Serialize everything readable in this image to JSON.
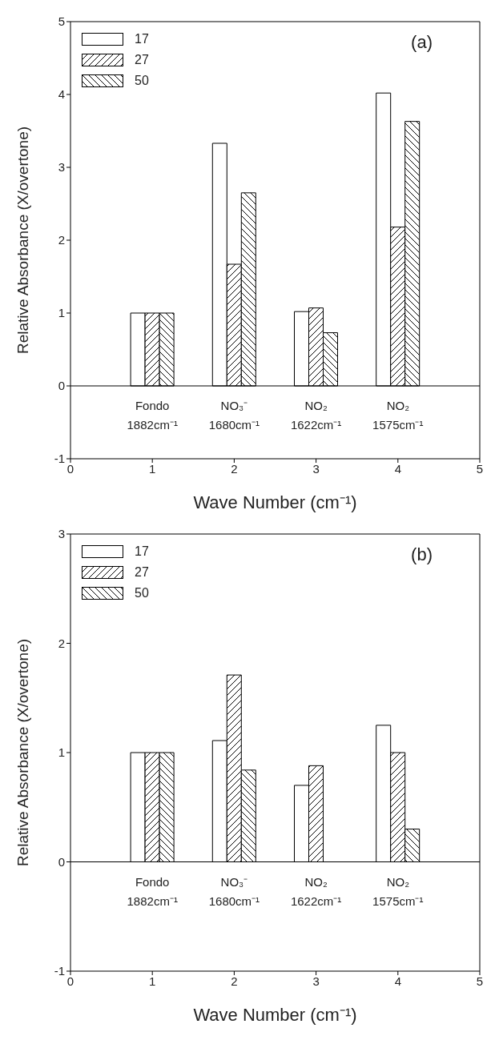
{
  "chart_data": [
    {
      "type": "bar",
      "title": "(a)",
      "xlabel": "Wave Number (cm⁻¹)",
      "ylabel": "Relative Absorbance (X/overtone)",
      "x": [
        1,
        2,
        3,
        4
      ],
      "xlim": [
        0,
        5
      ],
      "xticks": [
        0,
        1,
        2,
        3,
        4,
        5
      ],
      "ylim": [
        -1,
        5
      ],
      "yticks": [
        -1,
        0,
        1,
        2,
        3,
        4,
        5
      ],
      "legend": "top left",
      "series": [
        {
          "name": "17",
          "color": "#ffffff",
          "values": [
            1,
            3.33,
            1.02,
            4.02
          ]
        },
        {
          "name": "27",
          "color": "#000000",
          "values": [
            1,
            1.67,
            1.07,
            2.18
          ]
        },
        {
          "name": "50",
          "color": "#000000",
          "values": [
            1,
            2.65,
            0.73,
            3.63
          ]
        }
      ],
      "ref_lines": [
        {
          "axis": "y",
          "value": 0
        }
      ],
      "annotations": [
        "Fondo\n1882cm⁻¹",
        "NO₃⁻\n1680cm⁻¹",
        "NO₂\n1622cm⁻¹",
        "NO₂\n1575cm⁻¹"
      ]
    },
    {
      "type": "bar",
      "title": "(b)",
      "xlabel": "Wave Number (cm⁻¹)",
      "ylabel": "Relative Absorbance (X/overtone)",
      "x": [
        1,
        2,
        3,
        4
      ],
      "xlim": [
        0,
        5
      ],
      "xticks": [
        0,
        1,
        2,
        3,
        4,
        5
      ],
      "ylim": [
        -1,
        3
      ],
      "yticks": [
        -1,
        0,
        1,
        2,
        3
      ],
      "legend": "top left",
      "series": [
        {
          "name": "17",
          "color": "#ffffff",
          "values": [
            1,
            1.11,
            0.7,
            1.25
          ]
        },
        {
          "name": "27",
          "color": "#000000",
          "values": [
            1,
            1.71,
            0.88,
            1.0
          ]
        },
        {
          "name": "50",
          "color": "#000000",
          "values": [
            1,
            0.84,
            null,
            0.3
          ]
        }
      ],
      "ref_lines": [
        {
          "axis": "y",
          "value": 0
        }
      ],
      "annotations": [
        "Fondo\n1882cm⁻¹",
        "NO₃⁻\n1680cm⁻¹",
        "NO₂\n1622cm⁻¹",
        "NO₂\n1575cm⁻¹"
      ]
    }
  ]
}
